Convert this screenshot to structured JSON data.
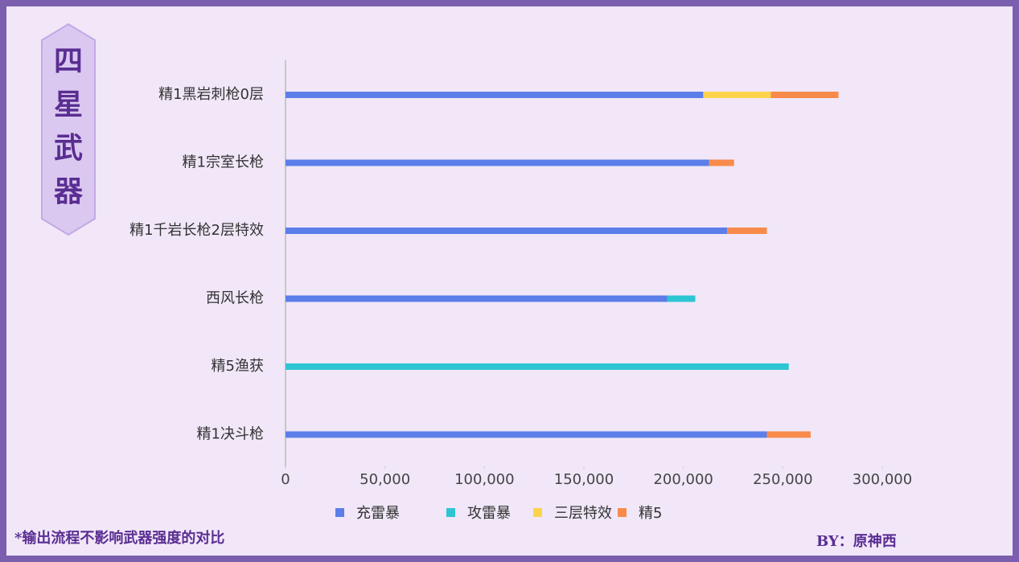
{
  "chart_data": {
    "type": "stacked-bar-horizontal",
    "side_label": "四星武器",
    "footnote": "*输出流程不影响武器强度的对比",
    "credit": "BY：原神西",
    "categories": [
      "精1黑岩刺枪0层",
      "精1宗室长枪",
      "精1千岩长枪2层特效",
      "西风长枪",
      "精5渔获",
      "精1决斗枪"
    ],
    "series": [
      {
        "name": "充雷暴",
        "color": "#5b7ee8",
        "values": [
          210000,
          213000,
          222000,
          192000,
          null,
          242000
        ]
      },
      {
        "name": "攻雷暴",
        "color": "#2ec5d3",
        "values": [
          null,
          null,
          null,
          14000,
          253000,
          null
        ]
      },
      {
        "name": "三层特效",
        "color": "#fdd34c",
        "values": [
          34000,
          null,
          null,
          null,
          null,
          null
        ]
      },
      {
        "name": "精5",
        "color": "#f88b4b",
        "values": [
          34000,
          12500,
          20000,
          null,
          null,
          22000
        ]
      }
    ],
    "xlim": [
      0,
      300000
    ],
    "xticks": [
      0,
      {
        "value": 50000,
        "label": "50,000"
      },
      {
        "value": 100000,
        "label": "100,000"
      },
      {
        "value": 150000,
        "label": "150,000"
      },
      {
        "value": 200000,
        "label": "200,000"
      },
      {
        "value": 250000,
        "label": "250,000"
      },
      {
        "value": 300000,
        "label": "300,000"
      }
    ],
    "legend": "bottom"
  }
}
